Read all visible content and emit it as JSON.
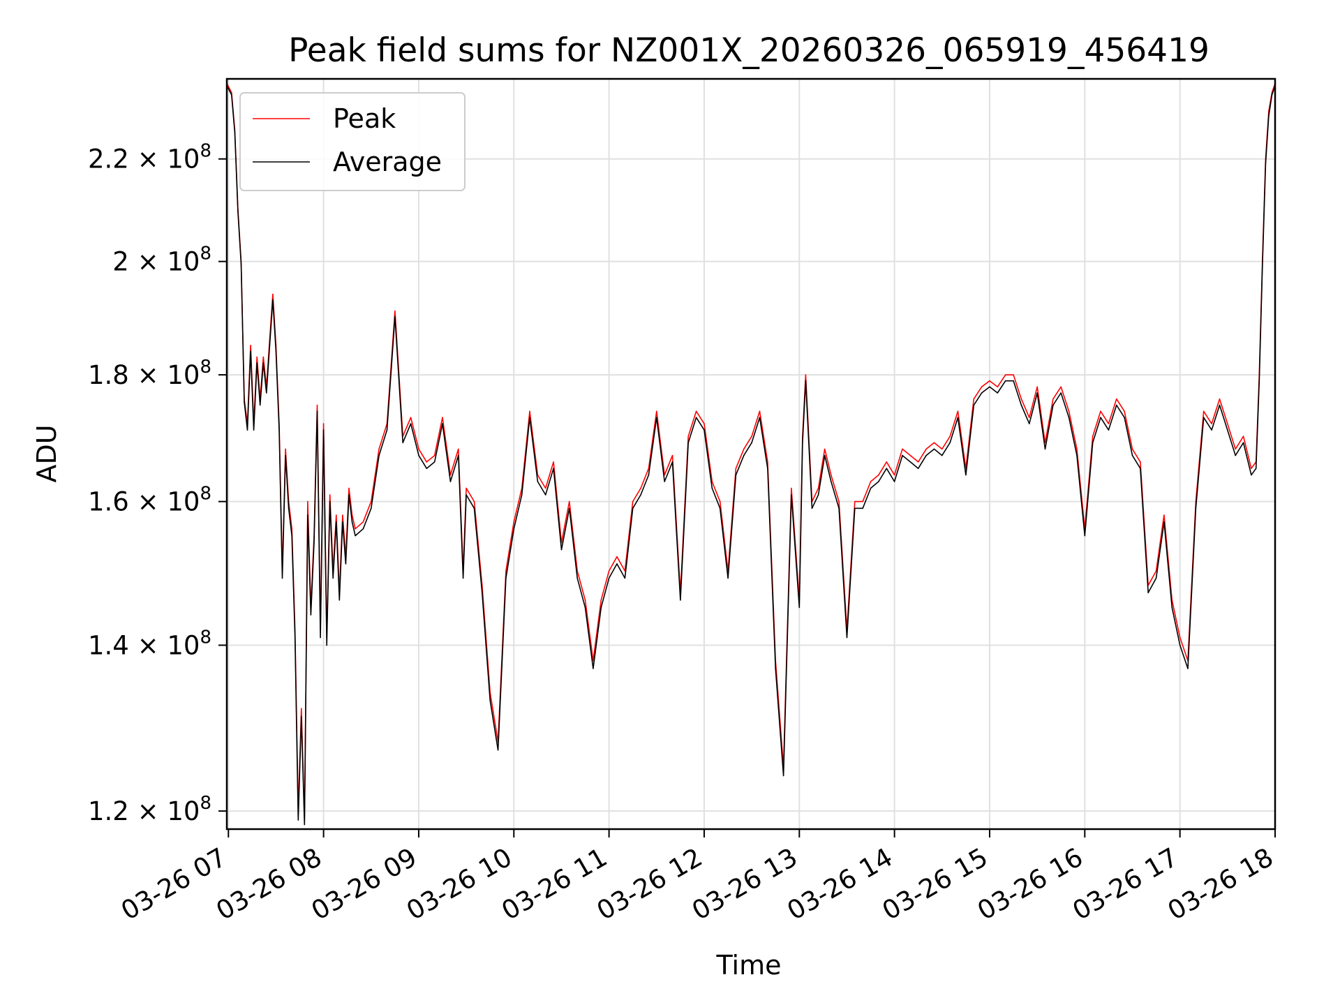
{
  "chart_data": {
    "type": "line",
    "title": "Peak field sums for NZ001X_20260326_065919_456419",
    "xlabel": "Time",
    "ylabel": "ADU",
    "yscale": "log",
    "xlim": [
      "03-26 06:59",
      "03-26 18:00"
    ],
    "ylim": [
      118000000,
      237000000
    ],
    "grid": true,
    "legend_position": "upper left",
    "x_ticks": [
      "03-26 07",
      "03-26 08",
      "03-26 09",
      "03-26 10",
      "03-26 11",
      "03-26 12",
      "03-26 13",
      "03-26 14",
      "03-26 15",
      "03-26 16",
      "03-26 17",
      "03-26 18"
    ],
    "y_ticks": [
      {
        "value": 120000000,
        "mantissa": "1.2",
        "exponent": "8"
      },
      {
        "value": 140000000,
        "mantissa": "1.4",
        "exponent": "8"
      },
      {
        "value": 160000000,
        "mantissa": "1.6",
        "exponent": "8"
      },
      {
        "value": 180000000,
        "mantissa": "1.8",
        "exponent": "8"
      },
      {
        "value": 200000000,
        "mantissa": "2",
        "exponent": "8"
      },
      {
        "value": 220000000,
        "mantissa": "2.2",
        "exponent": "8"
      }
    ],
    "series": [
      {
        "name": "Peak",
        "color": "#ff0000",
        "x": [
          "06:59",
          "07:02",
          "07:04",
          "07:06",
          "07:08",
          "07:10",
          "07:12",
          "07:14",
          "07:16",
          "07:18",
          "07:20",
          "07:22",
          "07:24",
          "07:26",
          "07:28",
          "07:30",
          "07:32",
          "07:34",
          "07:36",
          "07:38",
          "07:40",
          "07:42",
          "07:44",
          "07:46",
          "07:48",
          "07:50",
          "07:52",
          "07:54",
          "07:56",
          "07:58",
          "08:00",
          "08:02",
          "08:04",
          "08:06",
          "08:08",
          "08:10",
          "08:12",
          "08:14",
          "08:16",
          "08:18",
          "08:20",
          "08:25",
          "08:30",
          "08:35",
          "08:40",
          "08:45",
          "08:50",
          "08:55",
          "09:00",
          "09:05",
          "09:10",
          "09:15",
          "09:20",
          "09:25",
          "09:28",
          "09:30",
          "09:35",
          "09:40",
          "09:45",
          "09:50",
          "09:55",
          "10:00",
          "10:05",
          "10:10",
          "10:15",
          "10:20",
          "10:25",
          "10:30",
          "10:35",
          "10:40",
          "10:45",
          "10:50",
          "10:55",
          "11:00",
          "11:05",
          "11:10",
          "11:15",
          "11:20",
          "11:25",
          "11:30",
          "11:35",
          "11:40",
          "11:45",
          "11:50",
          "11:55",
          "12:00",
          "12:05",
          "12:10",
          "12:15",
          "12:20",
          "12:25",
          "12:30",
          "12:35",
          "12:40",
          "12:45",
          "12:50",
          "12:55",
          "13:00",
          "13:02",
          "13:04",
          "13:08",
          "13:12",
          "13:16",
          "13:20",
          "13:25",
          "13:30",
          "13:35",
          "13:40",
          "13:45",
          "13:50",
          "13:55",
          "14:00",
          "14:05",
          "14:10",
          "14:15",
          "14:20",
          "14:25",
          "14:30",
          "14:35",
          "14:40",
          "14:45",
          "14:50",
          "14:55",
          "15:00",
          "15:05",
          "15:10",
          "15:15",
          "15:20",
          "15:25",
          "15:30",
          "15:35",
          "15:40",
          "15:45",
          "15:50",
          "15:55",
          "16:00",
          "16:05",
          "16:10",
          "16:15",
          "16:20",
          "16:25",
          "16:30",
          "16:35",
          "16:40",
          "16:45",
          "16:50",
          "16:55",
          "17:00",
          "17:05",
          "17:10",
          "17:15",
          "17:20",
          "17:25",
          "17:30",
          "17:35",
          "17:40",
          "17:45",
          "17:48",
          "17:50",
          "17:52",
          "17:54",
          "17:56",
          "17:58",
          "18:00"
        ],
        "values": [
          236000000,
          234000000,
          226000000,
          210000000,
          200000000,
          176000000,
          172000000,
          185000000,
          172000000,
          183000000,
          176000000,
          183000000,
          178000000,
          186000000,
          194000000,
          185000000,
          172000000,
          150000000,
          168000000,
          160000000,
          156000000,
          142000000,
          120000000,
          132000000,
          119000000,
          160000000,
          145000000,
          155000000,
          175000000,
          142000000,
          172000000,
          141000000,
          161000000,
          150000000,
          158000000,
          147000000,
          158000000,
          152000000,
          162000000,
          158000000,
          156000000,
          157000000,
          160000000,
          168000000,
          172000000,
          191000000,
          170000000,
          173000000,
          168000000,
          166000000,
          167000000,
          173000000,
          164000000,
          168000000,
          150000000,
          162000000,
          160000000,
          148000000,
          134000000,
          128000000,
          150000000,
          157000000,
          162000000,
          174000000,
          164000000,
          162000000,
          166000000,
          154000000,
          160000000,
          150000000,
          146000000,
          138000000,
          146000000,
          150000000,
          152000000,
          150000000,
          160000000,
          162000000,
          165000000,
          174000000,
          164000000,
          167000000,
          147000000,
          170000000,
          174000000,
          172000000,
          163000000,
          160000000,
          150000000,
          165000000,
          168000000,
          170000000,
          174000000,
          166000000,
          138000000,
          125000000,
          162000000,
          146000000,
          170000000,
          180000000,
          160000000,
          162000000,
          168000000,
          164000000,
          160000000,
          142000000,
          160000000,
          160000000,
          163000000,
          164000000,
          166000000,
          164000000,
          168000000,
          167000000,
          166000000,
          168000000,
          169000000,
          168000000,
          170000000,
          174000000,
          165000000,
          176000000,
          178000000,
          179000000,
          178000000,
          180000000,
          180000000,
          176000000,
          173000000,
          178000000,
          169000000,
          176000000,
          178000000,
          174000000,
          168000000,
          156000000,
          170000000,
          174000000,
          172000000,
          176000000,
          174000000,
          168000000,
          166000000,
          148000000,
          150000000,
          158000000,
          146000000,
          141000000,
          138000000,
          160000000,
          174000000,
          172000000,
          176000000,
          172000000,
          168000000,
          170000000,
          165000000,
          166000000,
          180000000,
          200000000,
          220000000,
          230000000,
          234000000,
          236000000
        ]
      },
      {
        "name": "Average",
        "color": "#000000",
        "x": [
          "06:59",
          "07:02",
          "07:04",
          "07:06",
          "07:08",
          "07:10",
          "07:12",
          "07:14",
          "07:16",
          "07:18",
          "07:20",
          "07:22",
          "07:24",
          "07:26",
          "07:28",
          "07:30",
          "07:32",
          "07:34",
          "07:36",
          "07:38",
          "07:40",
          "07:42",
          "07:44",
          "07:46",
          "07:48",
          "07:50",
          "07:52",
          "07:54",
          "07:56",
          "07:58",
          "08:00",
          "08:02",
          "08:04",
          "08:06",
          "08:08",
          "08:10",
          "08:12",
          "08:14",
          "08:16",
          "08:18",
          "08:20",
          "08:25",
          "08:30",
          "08:35",
          "08:40",
          "08:45",
          "08:50",
          "08:55",
          "09:00",
          "09:05",
          "09:10",
          "09:15",
          "09:20",
          "09:25",
          "09:28",
          "09:30",
          "09:35",
          "09:40",
          "09:45",
          "09:50",
          "09:55",
          "10:00",
          "10:05",
          "10:10",
          "10:15",
          "10:20",
          "10:25",
          "10:30",
          "10:35",
          "10:40",
          "10:45",
          "10:50",
          "10:55",
          "11:00",
          "11:05",
          "11:10",
          "11:15",
          "11:20",
          "11:25",
          "11:30",
          "11:35",
          "11:40",
          "11:45",
          "11:50",
          "11:55",
          "12:00",
          "12:05",
          "12:10",
          "12:15",
          "12:20",
          "12:25",
          "12:30",
          "12:35",
          "12:40",
          "12:45",
          "12:50",
          "12:55",
          "13:00",
          "13:02",
          "13:04",
          "13:08",
          "13:12",
          "13:16",
          "13:20",
          "13:25",
          "13:30",
          "13:35",
          "13:40",
          "13:45",
          "13:50",
          "13:55",
          "14:00",
          "14:05",
          "14:10",
          "14:15",
          "14:20",
          "14:25",
          "14:30",
          "14:35",
          "14:40",
          "14:45",
          "14:50",
          "14:55",
          "15:00",
          "15:05",
          "15:10",
          "15:15",
          "15:20",
          "15:25",
          "15:30",
          "15:35",
          "15:40",
          "15:45",
          "15:50",
          "15:55",
          "16:00",
          "16:05",
          "16:10",
          "16:15",
          "16:20",
          "16:25",
          "16:30",
          "16:35",
          "16:40",
          "16:45",
          "16:50",
          "16:55",
          "17:00",
          "17:05",
          "17:10",
          "17:15",
          "17:20",
          "17:25",
          "17:30",
          "17:35",
          "17:40",
          "17:45",
          "17:48",
          "17:50",
          "17:52",
          "17:54",
          "17:56",
          "17:58",
          "18:00"
        ],
        "values": [
          235500000,
          233500000,
          225500000,
          209500000,
          199500000,
          175500000,
          171000000,
          184000000,
          171000000,
          182000000,
          175000000,
          182000000,
          177000000,
          185000000,
          193000000,
          184000000,
          171000000,
          149000000,
          167000000,
          159000000,
          155000000,
          141000000,
          119000000,
          131000000,
          118500000,
          158000000,
          144000000,
          154000000,
          174000000,
          141000000,
          171000000,
          140000000,
          160000000,
          149000000,
          157000000,
          146000000,
          157000000,
          151000000,
          161000000,
          157000000,
          155000000,
          156000000,
          159000000,
          167000000,
          171000000,
          190000000,
          169000000,
          172000000,
          167000000,
          165000000,
          166000000,
          172000000,
          163000000,
          167000000,
          149000000,
          161000000,
          159000000,
          147000000,
          133000000,
          127000000,
          149000000,
          156000000,
          161000000,
          173000000,
          163000000,
          161000000,
          165000000,
          153000000,
          159000000,
          149000000,
          145000000,
          137000000,
          145000000,
          149000000,
          151000000,
          149000000,
          159000000,
          161000000,
          164000000,
          173000000,
          163000000,
          166000000,
          146000000,
          169000000,
          173000000,
          171000000,
          162000000,
          159000000,
          149000000,
          164000000,
          167000000,
          169000000,
          173000000,
          165000000,
          137000000,
          124000000,
          161000000,
          145000000,
          169000000,
          179000000,
          159000000,
          161000000,
          167000000,
          163000000,
          159000000,
          141000000,
          159000000,
          159000000,
          162000000,
          163000000,
          165000000,
          163000000,
          167000000,
          166000000,
          165000000,
          167000000,
          168000000,
          167000000,
          169000000,
          173000000,
          164000000,
          175000000,
          177000000,
          178000000,
          177000000,
          179000000,
          179000000,
          175000000,
          172000000,
          177000000,
          168000000,
          175000000,
          177000000,
          173000000,
          167000000,
          155000000,
          169000000,
          173000000,
          171000000,
          175000000,
          173000000,
          167000000,
          165000000,
          147000000,
          149000000,
          157000000,
          145000000,
          140000000,
          137000000,
          159000000,
          173000000,
          171000000,
          175000000,
          171000000,
          167000000,
          169000000,
          164000000,
          165000000,
          179000000,
          199000000,
          219000000,
          229000000,
          233500000,
          235500000
        ]
      }
    ]
  }
}
